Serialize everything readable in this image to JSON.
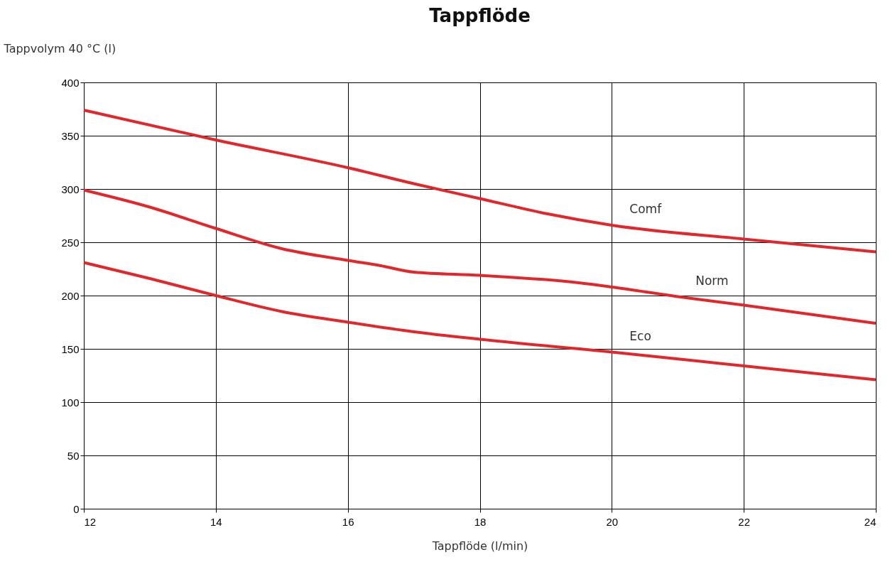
{
  "chart_data": {
    "type": "line",
    "title": "Tappflöde",
    "xlabel": "Tappflöde (l/min)",
    "ylabel": "Tappvolym 40 °C (l)",
    "xlim": [
      12,
      24
    ],
    "xticks": [
      12,
      14,
      16,
      18,
      20,
      22,
      24
    ],
    "ylim": [
      0,
      400
    ],
    "yticks": [
      0,
      50,
      100,
      150,
      200,
      250,
      300,
      350,
      400
    ],
    "grid": true,
    "marker": "none",
    "line_style": "solid",
    "series": [
      {
        "name": "Comf",
        "color": "#e3262a",
        "x": [
          12,
          14,
          16,
          17,
          18,
          19,
          20,
          22,
          24
        ],
        "values": [
          374,
          346,
          320,
          305,
          291,
          277,
          266,
          253,
          241
        ]
      },
      {
        "name": "Norm",
        "color": "#e3262a",
        "x": [
          12,
          13,
          14,
          15,
          16,
          16.5,
          17,
          18,
          19.5,
          20,
          21,
          22,
          24
        ],
        "values": [
          299,
          283,
          263,
          244,
          233,
          228,
          222,
          219,
          212,
          208,
          199,
          191,
          174
        ]
      },
      {
        "name": "Eco",
        "color": "#e3262a",
        "x": [
          12,
          13,
          14,
          15,
          16,
          17,
          18,
          20,
          22,
          24
        ],
        "values": [
          231,
          216,
          200,
          185,
          175,
          166,
          159,
          147,
          134,
          121
        ]
      }
    ]
  }
}
